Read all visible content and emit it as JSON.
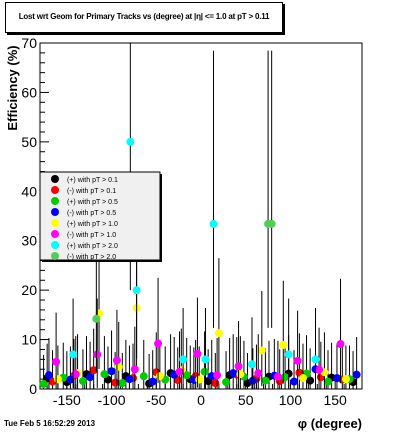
{
  "title": "Lost wrt Geom for Primary Tracks vs (degree) at |η| <= 1.0 at pT > 0.11",
  "footer": "Tue Feb  5 16:52:29 2013",
  "chart_data": {
    "type": "scatter",
    "xlabel": "φ (degree)",
    "ylabel": "Efficiency (%)",
    "xlim": [
      -180,
      180
    ],
    "ylim": [
      0,
      70
    ],
    "x_ticks": [
      "-150",
      "-100",
      "-50",
      "0",
      "50",
      "100",
      "150"
    ],
    "x_tick_values": [
      -150,
      -100,
      -50,
      0,
      50,
      100,
      150
    ],
    "y_ticks": [
      "0",
      "10",
      "20",
      "30",
      "40",
      "50",
      "60",
      "70"
    ],
    "y_tick_values": [
      0,
      10,
      20,
      30,
      40,
      50,
      60,
      70
    ],
    "grid": false,
    "legend_position": "left",
    "series": [
      {
        "name": "(+) with pT > 0.1",
        "color": "#000000",
        "x": [
          -172,
          -150,
          -128,
          -104,
          -84,
          -58,
          -34,
          -12,
          8,
          32,
          52,
          76,
          98,
          122,
          146,
          170
        ],
        "y": [
          2.2,
          1.4,
          3.0,
          1.9,
          2.6,
          1.1,
          3.2,
          2.0,
          1.6,
          2.8,
          1.2,
          2.5,
          3.1,
          1.7,
          2.3,
          1.4
        ]
      },
      {
        "name": "(-) with pT > 0.1",
        "color": "#ff0000",
        "x": [
          -166,
          -142,
          -120,
          -96,
          -76,
          -50,
          -26,
          -6,
          16,
          40,
          62,
          88,
          110,
          134,
          158
        ],
        "y": [
          1.5,
          2.7,
          3.8,
          1.3,
          2.2,
          3.4,
          1.8,
          2.6,
          1.2,
          2.9,
          2.1,
          1.6,
          3.3,
          2.4,
          1.9
        ]
      },
      {
        "name": "(+) with pT > 0.5",
        "color": "#00cc00",
        "x": [
          -176,
          -154,
          -132,
          -108,
          -88,
          -64,
          -40,
          -16,
          4,
          28,
          48,
          72,
          94,
          118,
          142,
          166
        ],
        "y": [
          1.0,
          2.3,
          1.6,
          3.0,
          1.2,
          2.6,
          1.9,
          2.8,
          3.5,
          1.4,
          2.5,
          1.7,
          2.4,
          3.1,
          1.5,
          2.0
        ]
      },
      {
        "name": "(-) with pT > 0.5",
        "color": "#0000ff",
        "x": [
          -170,
          -146,
          -124,
          -100,
          -80,
          -54,
          -30,
          -8,
          12,
          36,
          58,
          82,
          104,
          128,
          152,
          174
        ],
        "y": [
          2.8,
          1.9,
          2.4,
          3.6,
          2.0,
          1.5,
          2.9,
          1.8,
          2.6,
          3.2,
          1.7,
          2.7,
          1.5,
          4.0,
          2.2,
          2.9
        ]
      },
      {
        "name": "(+) with pT > 1.0",
        "color": "#ffff00",
        "x": [
          -160,
          -138,
          -114,
          -92,
          -72,
          -46,
          -22,
          -2,
          20,
          44,
          68,
          92,
          114,
          138,
          162
        ],
        "y": [
          2.0,
          3.2,
          15.3,
          4.5,
          16.4,
          2.6,
          3.8,
          1.9,
          11.3,
          3.0,
          7.8,
          8.9,
          2.2,
          3.4,
          2.0
        ]
      },
      {
        "name": "(-) with pT > 1.0",
        "color": "#ff00ff",
        "x": [
          -162,
          -140,
          -116,
          -94,
          -74,
          -48,
          -24,
          -4,
          18,
          42,
          64,
          86,
          108,
          132,
          156
        ],
        "y": [
          5.5,
          3.0,
          7.0,
          5.8,
          4.0,
          9.2,
          3.5,
          7.1,
          2.8,
          4.6,
          3.2,
          2.5,
          5.7,
          3.9,
          9.1
        ]
      },
      {
        "name": "(+) with pT > 2.0",
        "color": "#00ffff",
        "x": [
          -143,
          -79,
          -72,
          -20,
          5,
          14,
          57,
          98,
          128
        ],
        "y": [
          7.0,
          50.0,
          20.0,
          6.0,
          6.0,
          33.4,
          5.0,
          7.0,
          6.0
        ]
      },
      {
        "name": "(-) with pT > 2.0",
        "color": "#55cc55",
        "x": [
          -117,
          75,
          79
        ],
        "y": [
          14.2,
          33.4,
          33.4
        ]
      }
    ]
  }
}
